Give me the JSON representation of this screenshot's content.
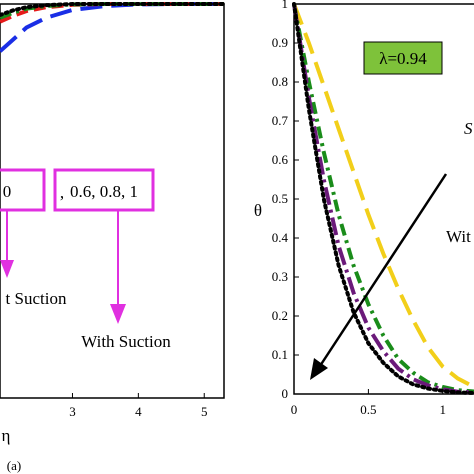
{
  "chart_data": [
    {
      "type": "line",
      "panel": "(a)",
      "xlabel": "η",
      "ylabel": "",
      "xticks": [
        "3",
        "4",
        "5"
      ],
      "xlim": [
        1.9,
        5.3
      ],
      "ylim": [
        0,
        1
      ],
      "grid": false,
      "annotations": {
        "box_left": "0",
        "box_separator": ",",
        "box_right": "0.6, 0.8, 1",
        "label_without": "t Suction",
        "label_with": "With Suction"
      },
      "series": [
        {
          "color": "#1a2ee6",
          "dash": "long-dash",
          "x": [
            1.9,
            2.1,
            2.3,
            2.6,
            3.0,
            3.5,
            4.0,
            4.5,
            5.3
          ],
          "values": [
            0.88,
            0.91,
            0.94,
            0.965,
            0.985,
            0.995,
            0.999,
            1.0,
            1.0
          ]
        },
        {
          "color": "#e61a1a",
          "dash": "dash",
          "x": [
            1.9,
            2.1,
            2.3,
            2.6,
            3.0,
            3.5,
            4.0,
            5.3
          ],
          "values": [
            0.955,
            0.97,
            0.982,
            0.992,
            0.998,
            1.0,
            1.0,
            1.0
          ]
        },
        {
          "color": "#1a8c1a",
          "dash": "dash-dot",
          "x": [
            1.9,
            2.1,
            2.3,
            2.6,
            3.0,
            3.5,
            5.3
          ],
          "values": [
            0.965,
            0.978,
            0.988,
            0.995,
            0.999,
            1.0,
            1.0
          ]
        },
        {
          "color": "#000000",
          "dash": "dot",
          "x": [
            1.9,
            2.1,
            2.3,
            2.6,
            3.0,
            5.3
          ],
          "values": [
            0.972,
            0.984,
            0.992,
            0.997,
            1.0,
            1.0
          ]
        }
      ]
    },
    {
      "type": "line",
      "panel": "",
      "xlabel": "",
      "ylabel": "θ",
      "xticks": [
        "0",
        "0.5",
        "1"
      ],
      "yticks": [
        "0",
        "0.1",
        "0.2",
        "0.3",
        "0.4",
        "0.5",
        "0.6",
        "0.7",
        "0.8",
        "0.9",
        "1"
      ],
      "xlim": [
        0,
        1.25
      ],
      "ylim": [
        0,
        1
      ],
      "grid": false,
      "annotations": {
        "lambda_label": "λ=0.94",
        "lambda_box_color": "#7ec23a",
        "side_label_top": "S",
        "side_label_mid": "Wit"
      },
      "series": [
        {
          "color": "#f2cf1a",
          "dash": "long-dash",
          "x": [
            0,
            0.1,
            0.2,
            0.3,
            0.4,
            0.5,
            0.6,
            0.7,
            0.8,
            0.9,
            1.0,
            1.1,
            1.2,
            1.25
          ],
          "values": [
            1.0,
            0.9,
            0.79,
            0.68,
            0.57,
            0.46,
            0.36,
            0.27,
            0.19,
            0.12,
            0.07,
            0.04,
            0.02,
            0.015
          ]
        },
        {
          "color": "#1a8c1a",
          "dash": "dash-dot",
          "x": [
            0,
            0.1,
            0.2,
            0.3,
            0.4,
            0.5,
            0.6,
            0.7,
            0.8,
            0.9,
            1.0,
            1.1,
            1.25
          ],
          "values": [
            1.0,
            0.8,
            0.62,
            0.46,
            0.33,
            0.23,
            0.15,
            0.09,
            0.055,
            0.03,
            0.018,
            0.01,
            0.005
          ]
        },
        {
          "color": "#6b1a7a",
          "dash": "long-dash-dot",
          "x": [
            0,
            0.1,
            0.2,
            0.3,
            0.4,
            0.5,
            0.6,
            0.7,
            0.8,
            0.9,
            1.0,
            1.1,
            1.25
          ],
          "values": [
            1.0,
            0.76,
            0.55,
            0.38,
            0.26,
            0.17,
            0.11,
            0.065,
            0.038,
            0.022,
            0.012,
            0.006,
            0.003
          ]
        },
        {
          "color": "#000000",
          "dash": "dot",
          "x": [
            0,
            0.1,
            0.2,
            0.3,
            0.4,
            0.5,
            0.6,
            0.7,
            0.8,
            0.9,
            1.0,
            1.1,
            1.25
          ],
          "values": [
            1.0,
            0.73,
            0.5,
            0.33,
            0.21,
            0.13,
            0.08,
            0.045,
            0.025,
            0.014,
            0.008,
            0.004,
            0.002
          ]
        }
      ]
    }
  ]
}
